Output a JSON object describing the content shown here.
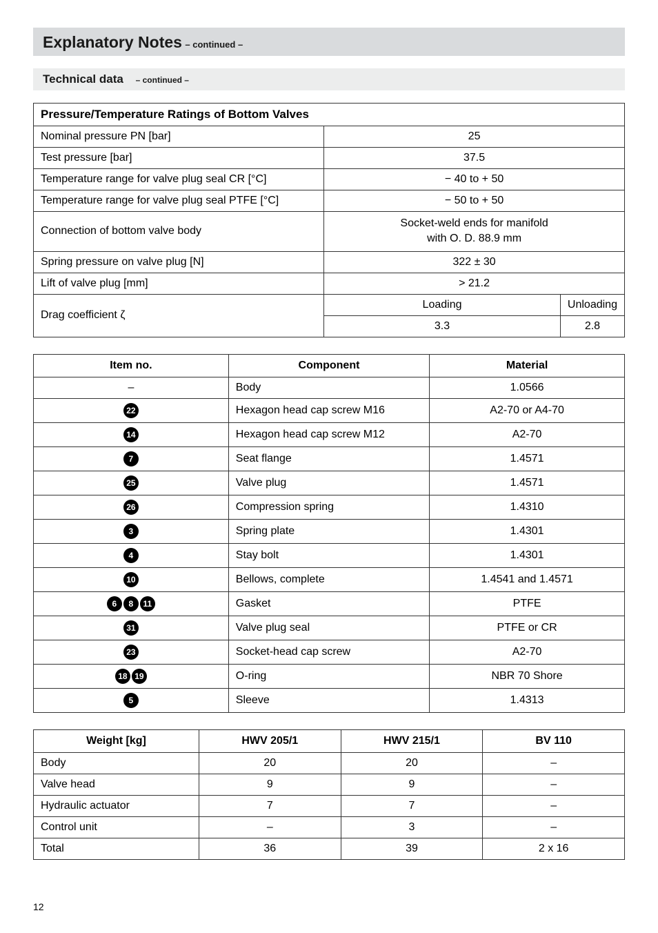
{
  "header": {
    "title": "Explanatory Notes",
    "continued": "– continued –"
  },
  "subheader": {
    "title": "Technical data",
    "continued": "– continued –"
  },
  "table1": {
    "header": "Pressure/Temperature Ratings of Bottom Valves",
    "rows": [
      {
        "label": "Nominal pressure PN [bar]",
        "value": "25"
      },
      {
        "label": "Test pressure [bar]",
        "value": "37.5"
      },
      {
        "label": "Temperature range for valve plug seal CR [°C]",
        "value": "− 40 to + 50"
      },
      {
        "label": "Temperature range for valve plug seal PTFE [°C]",
        "value": "− 50 to + 50"
      },
      {
        "label": "Connection of bottom valve body",
        "value_line1": "Socket-weld ends for manifold",
        "value_line2": "with O. D. 88.9 mm"
      },
      {
        "label": "Spring pressure on valve plug [N]",
        "value": "322 ± 30"
      },
      {
        "label": "Lift of valve plug [mm]",
        "value": "> 21.2"
      }
    ],
    "drag": {
      "label": "Drag coefficient ζ",
      "h1": "Loading",
      "h2": "Unloading",
      "v1": "3.3",
      "v2": "2.8"
    }
  },
  "table2": {
    "headers": [
      "Item no.",
      "Component",
      "Material"
    ],
    "rows": [
      {
        "badges": [],
        "dash": true,
        "component": "Body",
        "material": "1.0566"
      },
      {
        "badges": [
          "22"
        ],
        "component": "Hexagon head cap screw M16",
        "material": "A2-70 or A4-70"
      },
      {
        "badges": [
          "14"
        ],
        "component": "Hexagon head cap screw M12",
        "material": "A2-70"
      },
      {
        "badges": [
          "7"
        ],
        "component": "Seat flange",
        "material": "1.4571"
      },
      {
        "badges": [
          "25"
        ],
        "component": "Valve plug",
        "material": "1.4571"
      },
      {
        "badges": [
          "26"
        ],
        "component": "Compression spring",
        "material": "1.4310"
      },
      {
        "badges": [
          "3"
        ],
        "component": "Spring plate",
        "material": "1.4301"
      },
      {
        "badges": [
          "4"
        ],
        "component": "Stay bolt",
        "material": "1.4301"
      },
      {
        "badges": [
          "10"
        ],
        "component": "Bellows, complete",
        "material": "1.4541 and 1.4571"
      },
      {
        "badges": [
          "6",
          "8",
          "11"
        ],
        "component": "Gasket",
        "material": "PTFE"
      },
      {
        "badges": [
          "31"
        ],
        "component": "Valve plug seal",
        "material": "PTFE or CR"
      },
      {
        "badges": [
          "23"
        ],
        "component": "Socket-head cap screw",
        "material": "A2-70"
      },
      {
        "badges": [
          "18",
          "19"
        ],
        "component": "O-ring",
        "material": "NBR 70 Shore"
      },
      {
        "badges": [
          "5"
        ],
        "component": "Sleeve",
        "material": "1.4313"
      }
    ]
  },
  "table3": {
    "headers": [
      "Weight [kg]",
      "HWV 205/1",
      "HWV 215/1",
      "BV 110"
    ],
    "rows": [
      {
        "label": "Body",
        "c1": "20",
        "c2": "20",
        "c3": "–"
      },
      {
        "label": "Valve head",
        "c1": "9",
        "c2": "9",
        "c3": "–"
      },
      {
        "label": "Hydraulic actuator",
        "c1": "7",
        "c2": "7",
        "c3": "–"
      },
      {
        "label": "Control unit",
        "c1": "–",
        "c2": "3",
        "c3": "–"
      },
      {
        "label": "Total",
        "c1": "36",
        "c2": "39",
        "c3": "2 x 16"
      }
    ]
  },
  "pageNumber": "12"
}
